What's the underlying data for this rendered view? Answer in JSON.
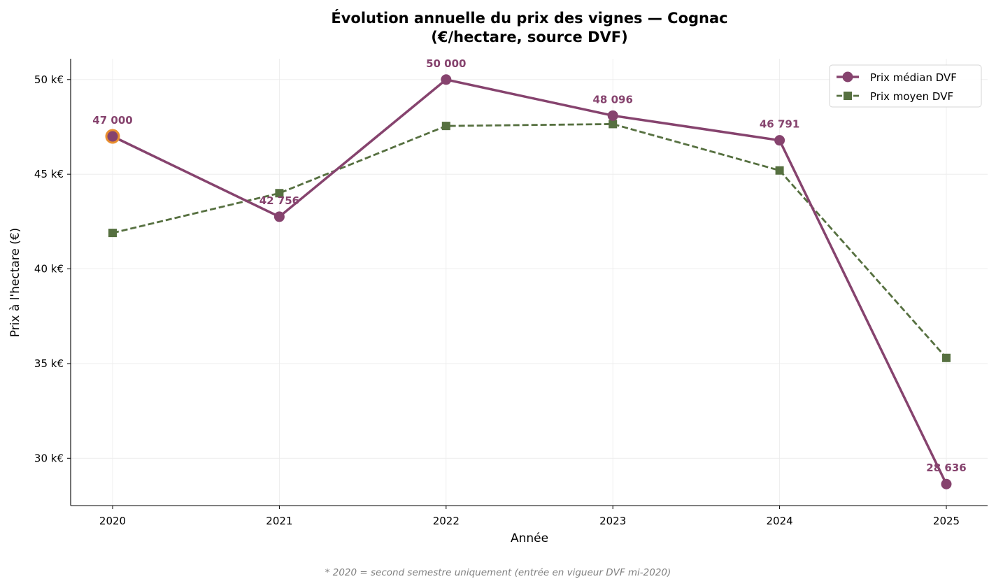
{
  "chart_data": {
    "type": "line",
    "title_line1": "Évolution annuelle du prix des vignes — Cognac",
    "title_line2": "(€/hectare, source DVF)",
    "xlabel": "Année",
    "ylabel": "Prix à l'hectare (€)",
    "x": [
      2020,
      2021,
      2022,
      2023,
      2024,
      2025
    ],
    "x_tick_labels": [
      "2020",
      "2021",
      "2022",
      "2023",
      "2024",
      "2025"
    ],
    "ylim": [
      27500,
      51100
    ],
    "y_ticks": [
      30000,
      35000,
      40000,
      45000,
      50000
    ],
    "y_tick_labels": [
      "30 k€",
      "35 k€",
      "40 k€",
      "45 k€",
      "50 k€"
    ],
    "grid": true,
    "legend_position": "top-right",
    "series": [
      {
        "name": "Prix médian DVF",
        "values": [
          47000,
          42756,
          50000,
          48096,
          46791,
          28636
        ],
        "data_labels": [
          "47 000",
          "42 756",
          "50 000",
          "48 096",
          "46 791",
          "28 636"
        ],
        "color": "#86436e",
        "line_style": "solid",
        "marker": "circle"
      },
      {
        "name": "Prix moyen DVF",
        "values": [
          41900,
          44000,
          47550,
          47650,
          45200,
          35300
        ],
        "color": "#567040",
        "line_style": "dashed",
        "marker": "square"
      }
    ],
    "highlight": {
      "series": 0,
      "index": 0,
      "color": "#e88e2e"
    },
    "footnote": "* 2020 = second semestre uniquement (entrée en vigueur DVF mi-2020)"
  }
}
